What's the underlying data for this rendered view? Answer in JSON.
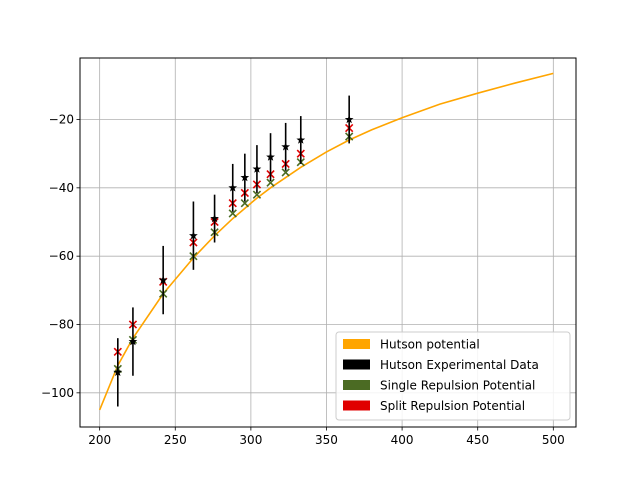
{
  "chart_data": {
    "type": "scatter",
    "title": "",
    "xlabel": "",
    "ylabel": "",
    "xlim": [
      187,
      515
    ],
    "ylim": [
      -110,
      -2
    ],
    "xticks": [
      200,
      250,
      300,
      350,
      400,
      450,
      500
    ],
    "yticks": [
      -100,
      -80,
      -60,
      -40,
      -20
    ],
    "xtick_labels": [
      "200",
      "250",
      "300",
      "350",
      "400",
      "450",
      "500"
    ],
    "ytick_labels": [
      "−100",
      "−80",
      "−60",
      "−40",
      "−20"
    ],
    "grid": true,
    "legend_position": "lower-right",
    "series": [
      {
        "name": "Hutson potential",
        "kind": "line",
        "color": "#ffa500",
        "x": [
          200,
          212,
          222,
          242,
          262,
          276,
          288,
          296,
          304,
          313,
          323,
          333,
          350,
          365,
          380,
          400,
          425,
          450,
          475,
          500
        ],
        "y": [
          -105,
          -92,
          -84,
          -71,
          -60.5,
          -54,
          -49,
          -46,
          -43,
          -40,
          -37,
          -34,
          -29.5,
          -26,
          -23,
          -19.5,
          -15.5,
          -12.3,
          -9.3,
          -6.5
        ]
      },
      {
        "name": "Hutson Experimental Data",
        "kind": "errorbar",
        "marker": "star",
        "color": "#000000",
        "x": [
          212,
          222,
          242,
          262,
          276,
          288,
          296,
          304,
          313,
          323,
          333,
          365
        ],
        "y": [
          -94,
          -85,
          -67,
          -54,
          -49,
          -40,
          -37,
          -34.5,
          -31,
          -28,
          -26,
          -20
        ],
        "yerr": [
          10,
          10,
          10,
          10,
          7,
          7,
          7,
          7,
          7,
          7,
          7,
          7
        ]
      },
      {
        "name": "Single Repulsion Potential",
        "kind": "scatter",
        "marker": "x",
        "color": "#4b6b23",
        "x": [
          212,
          222,
          242,
          262,
          276,
          288,
          296,
          304,
          313,
          323,
          333,
          365
        ],
        "y": [
          -93,
          -84.5,
          -71,
          -60,
          -53,
          -47.5,
          -44.5,
          -42,
          -38.5,
          -35.5,
          -32.5,
          -25
        ]
      },
      {
        "name": "Split Repulsion Potential",
        "kind": "scatter",
        "marker": "x",
        "color": "#e00000",
        "x": [
          212,
          222,
          242,
          262,
          276,
          288,
          296,
          304,
          313,
          323,
          333,
          365
        ],
        "y": [
          -88,
          -80,
          -67.5,
          -56,
          -50,
          -44.5,
          -41.5,
          -39,
          -36,
          -33,
          -30,
          -22.5
        ]
      }
    ]
  }
}
